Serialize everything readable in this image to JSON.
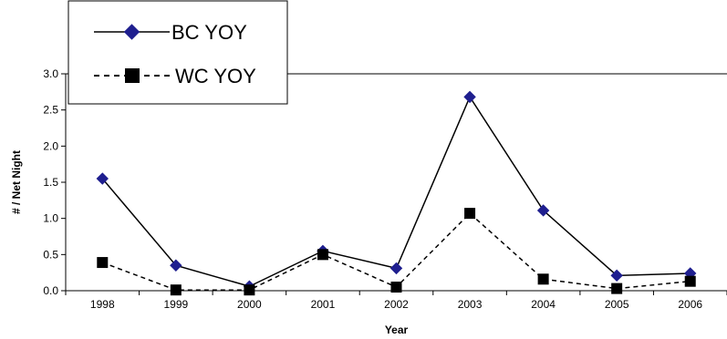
{
  "chart_data": {
    "type": "line",
    "title": "",
    "xlabel": "Year",
    "ylabel": "# / Net Night",
    "categories": [
      "1998",
      "1999",
      "2000",
      "2001",
      "2002",
      "2003",
      "2004",
      "2005",
      "2006"
    ],
    "yticks": [
      "0.0",
      "0.5",
      "1.0",
      "1.5",
      "2.0",
      "2.5",
      "3.0"
    ],
    "ylim": [
      0,
      3.0
    ],
    "grid": false,
    "legend_position": "top-left",
    "series": [
      {
        "name": "BC YOY",
        "values": [
          1.55,
          0.35,
          0.06,
          0.55,
          0.31,
          2.68,
          1.11,
          0.21,
          0.24
        ],
        "line_style": "solid",
        "marker": "diamond",
        "marker_color": "#1F1F8F",
        "line_color": "#000000"
      },
      {
        "name": "WC YOY",
        "values": [
          0.39,
          0.01,
          0.01,
          0.5,
          0.05,
          1.07,
          0.16,
          0.03,
          0.13
        ],
        "line_style": "dashed",
        "marker": "square",
        "marker_color": "#000000",
        "line_color": "#000000"
      }
    ]
  }
}
